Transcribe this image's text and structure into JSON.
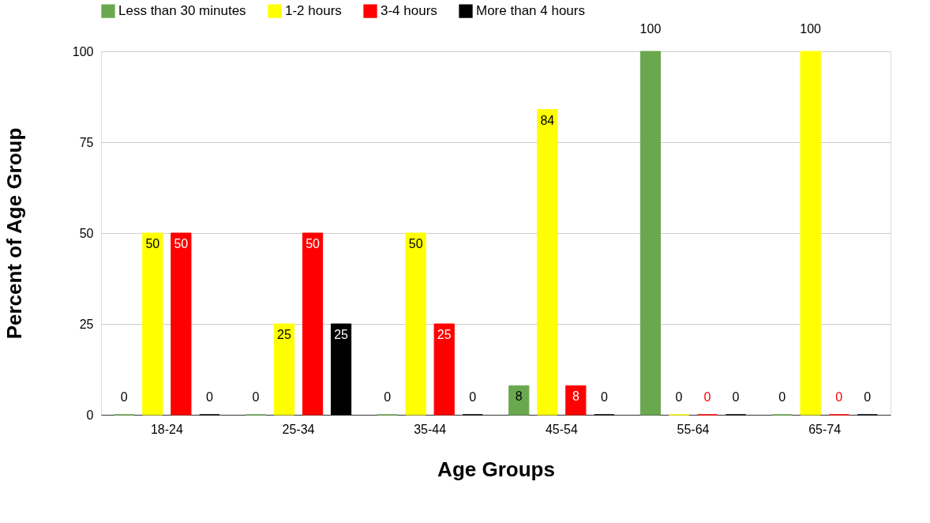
{
  "chart_data": {
    "type": "bar",
    "xlabel": "Age Groups",
    "ylabel": "Percent of Age Group",
    "categories": [
      "18-24",
      "25-34",
      "35-44",
      "45-54",
      "55-64",
      "65-74"
    ],
    "series": [
      {
        "name": "Less than 30 minutes",
        "color": "#6aa84f",
        "values": [
          0,
          0,
          0,
          8,
          100,
          0
        ]
      },
      {
        "name": "1-2 hours",
        "color": "#ffff00",
        "values": [
          50,
          25,
          50,
          84,
          0,
          100
        ]
      },
      {
        "name": "3-4 hours",
        "color": "#ff0000",
        "values": [
          50,
          50,
          25,
          8,
          0,
          0
        ]
      },
      {
        "name": "More than 4 hours",
        "color": "#000000",
        "values": [
          0,
          25,
          0,
          0,
          0,
          0
        ]
      }
    ],
    "ylim": [
      0,
      100
    ],
    "yticks": [
      0,
      25,
      50,
      75,
      100
    ],
    "grid": "y",
    "legend": "top",
    "data_labels": true
  }
}
